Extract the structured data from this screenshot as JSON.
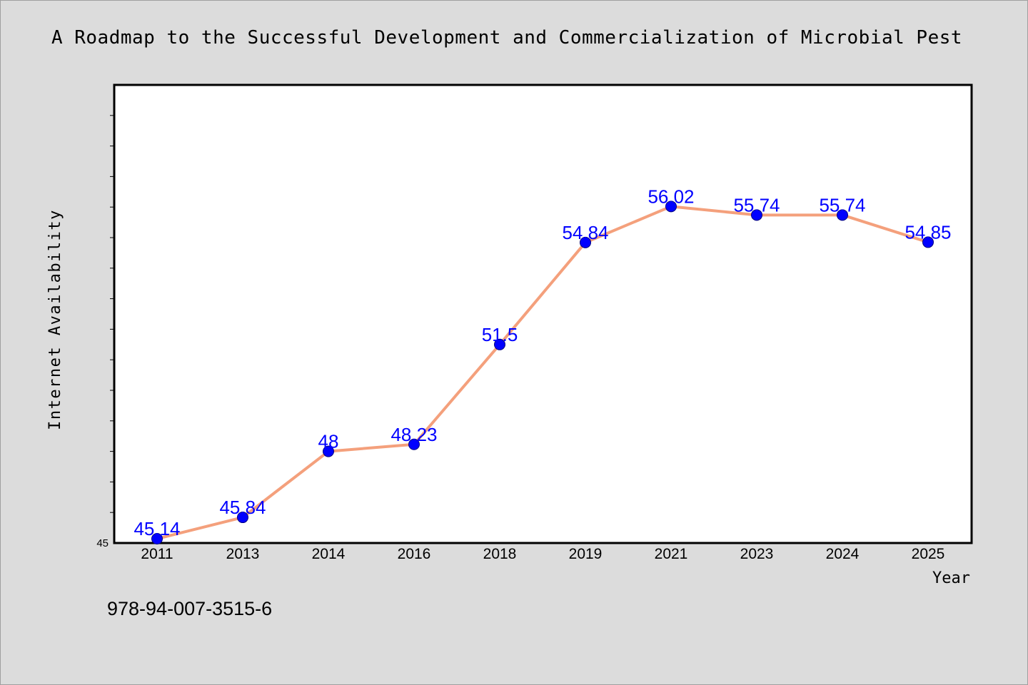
{
  "chart_data": {
    "type": "line",
    "title": "A Roadmap to the Successful Development and Commercialization of Microbial Pest",
    "xlabel": "Year",
    "ylabel": "Internet Availability",
    "categories": [
      "2011",
      "2013",
      "2014",
      "2016",
      "2018",
      "2019",
      "2021",
      "2023",
      "2024",
      "2025"
    ],
    "series": [
      {
        "values": [
          45.14,
          45.84,
          48,
          48.23,
          51.5,
          54.84,
          56.02,
          55.74,
          55.74,
          54.85
        ],
        "data_labels": [
          "45.14",
          "45.84",
          "48",
          "48.23",
          "51.5",
          "54.84",
          "56.02",
          "55.74",
          "55.74",
          "54.85"
        ]
      }
    ],
    "ylim": [
      45,
      60
    ],
    "y_tick_labels": [
      "45"
    ],
    "y_minor_step": 1,
    "grid": false,
    "colors": {
      "line": "#f4a07c",
      "marker": "#0000ff",
      "marker_stroke": "#000080",
      "data_label": "#0000ff",
      "background": "#dcdcdc",
      "plot_background": "#ffffff"
    }
  },
  "footer": {
    "isbn": "978-94-007-3515-6"
  }
}
